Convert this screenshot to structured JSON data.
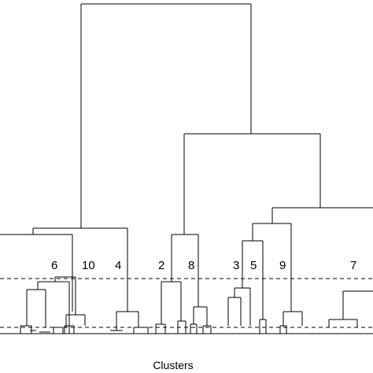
{
  "diagram": {
    "type": "dendrogram",
    "x_axis_label": "Clusters",
    "cluster_labels": [
      "6",
      "10",
      "4",
      "2",
      "8",
      "3",
      "5",
      "9",
      "7"
    ],
    "cut_lines": 2
  }
}
